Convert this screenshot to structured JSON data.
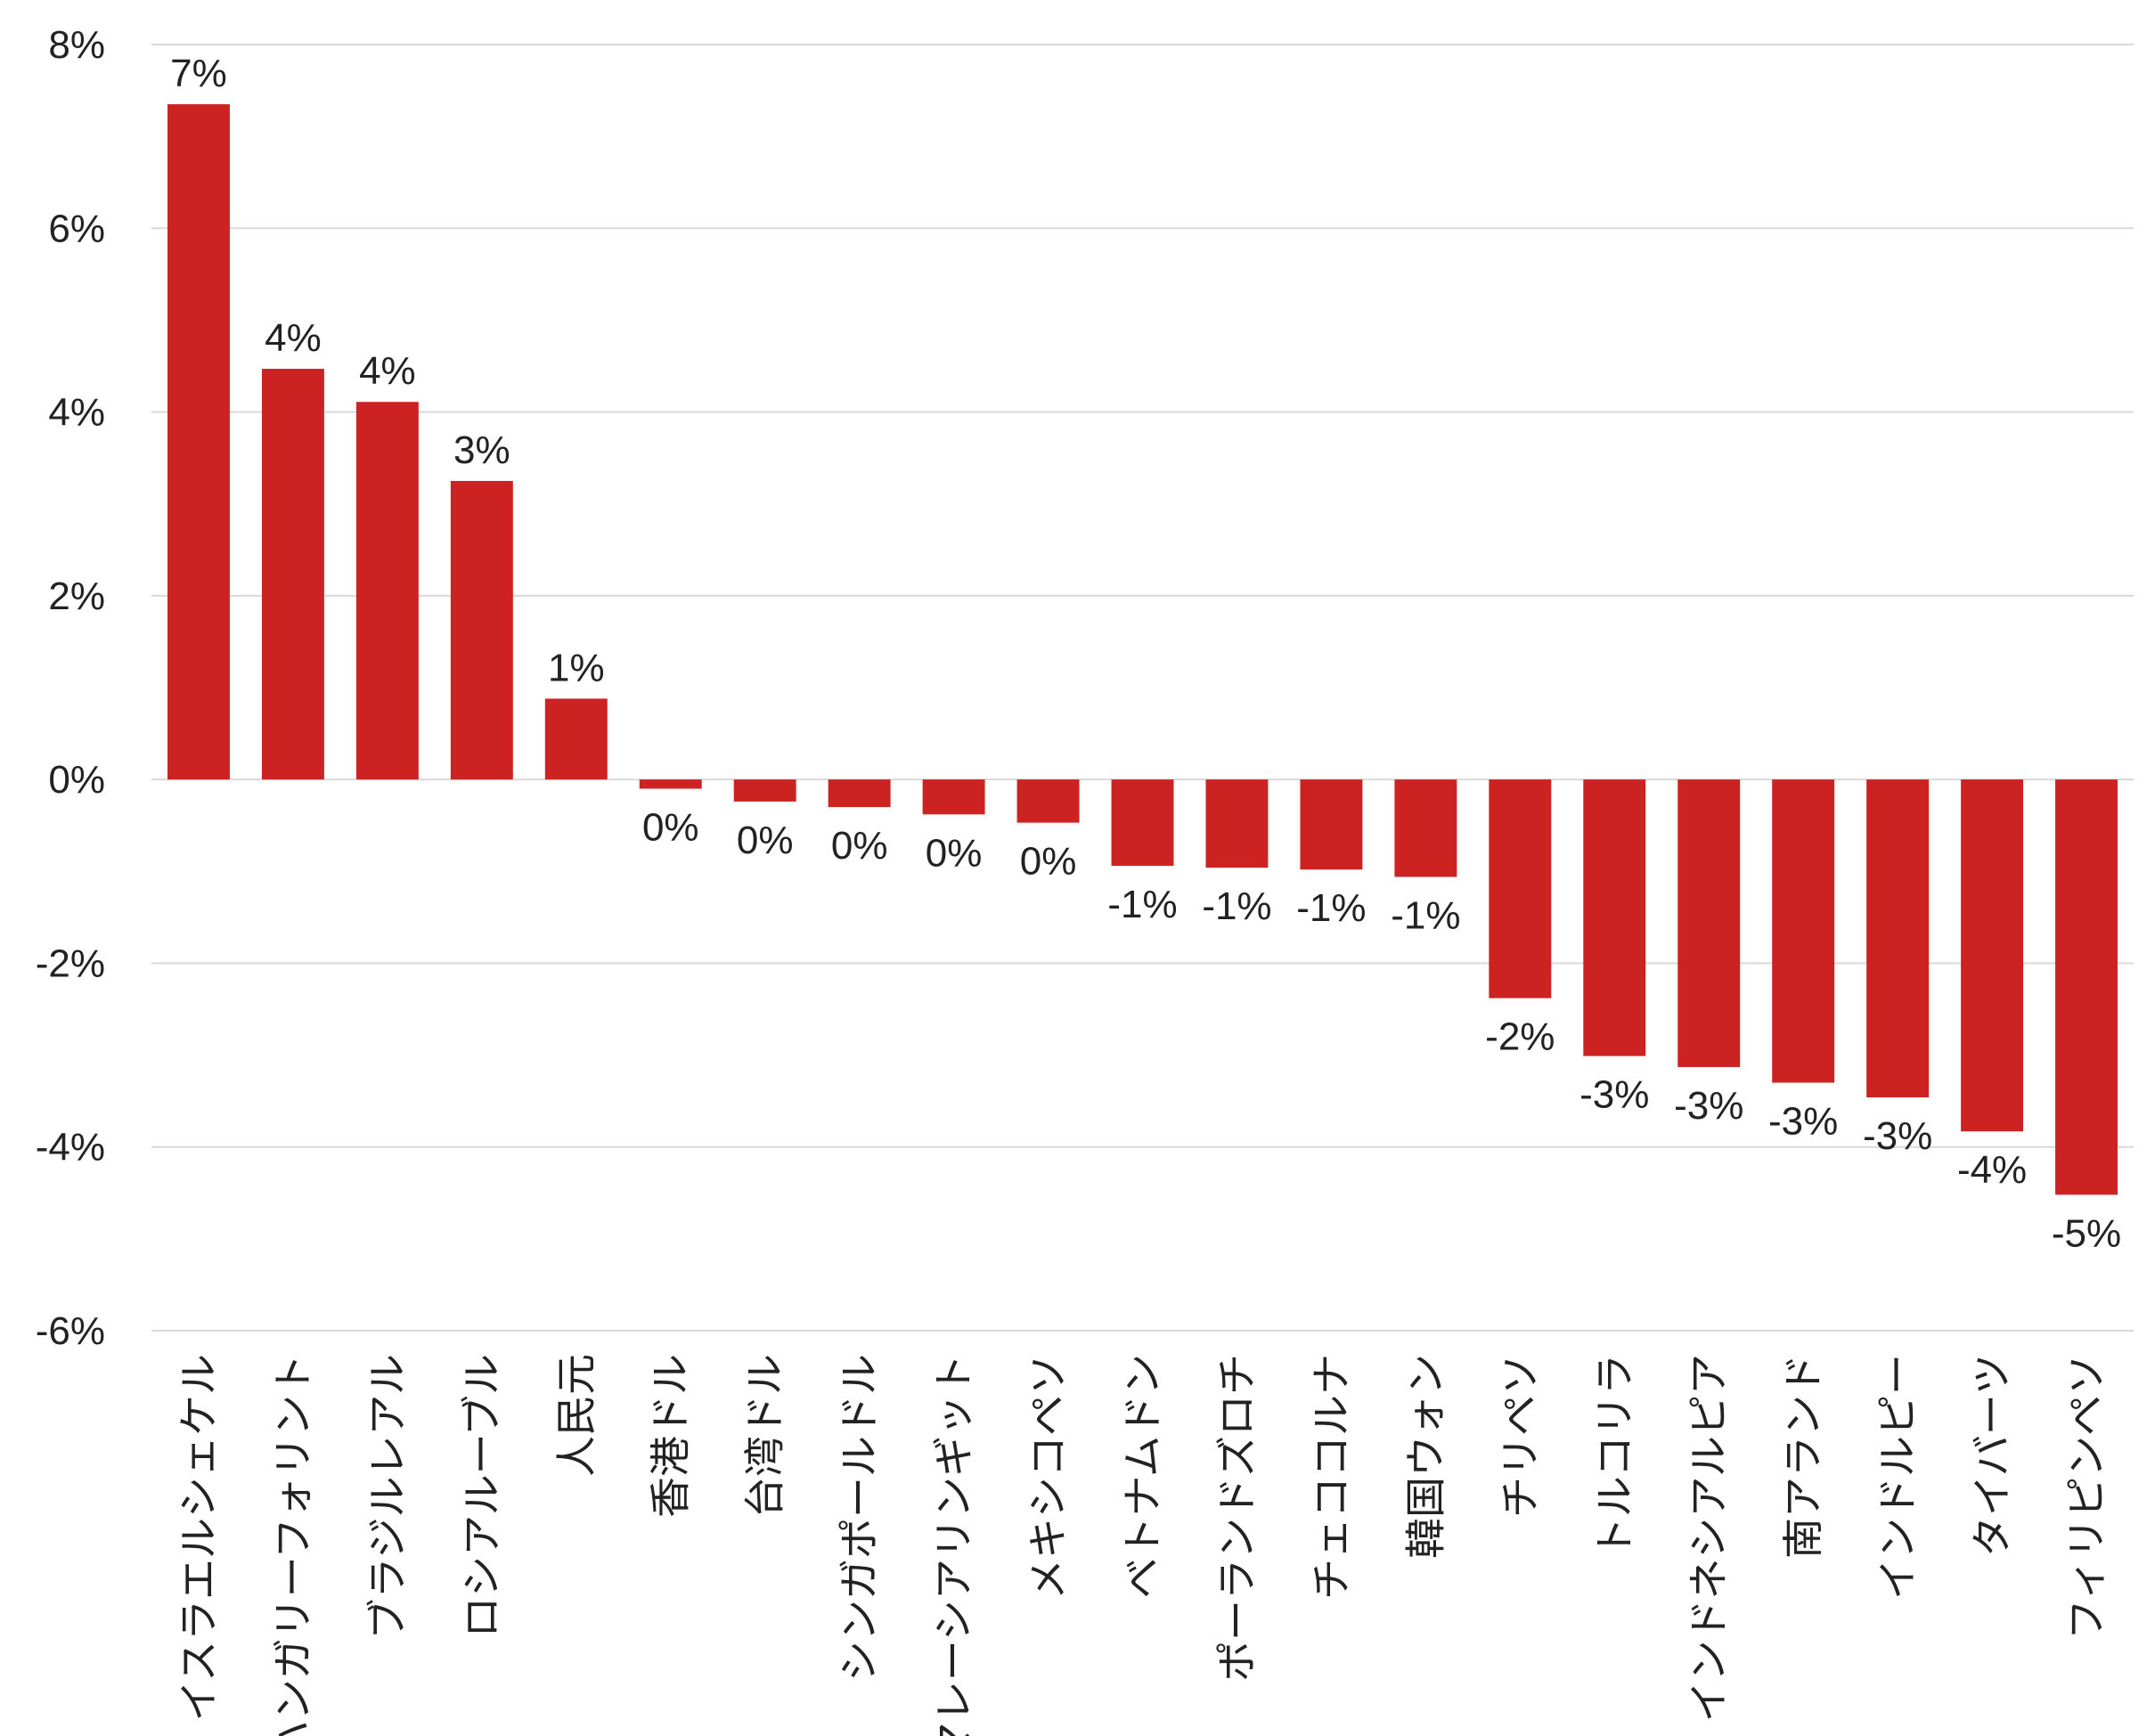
{
  "chart_data": {
    "type": "bar",
    "title": "",
    "xlabel": "",
    "ylabel": "",
    "ylim": [
      -6,
      8
    ],
    "yticks": [
      8,
      6,
      4,
      2,
      0,
      -2,
      -4,
      -6
    ],
    "ytick_labels": [
      "8%",
      "6%",
      "4%",
      "2%",
      "0%",
      "-2%",
      "-4%",
      "-6%"
    ],
    "grid": true,
    "bar_color": "#cc2222",
    "categories": [
      "イスラエルシェケル",
      "ハンガリーフォリント",
      "ブラジルレアル",
      "ロシアルーブル",
      "人民元",
      "香港ドル",
      "台湾ドル",
      "シンガポールドル",
      "マレーシアリンギット",
      "メキシコペソ",
      "ベトナムドン",
      "ポーランドズロチ",
      "チェココルナ",
      "韓国ウォン",
      "チリペソ",
      "トルコリラ",
      "インドネシアルピア",
      "南アランド",
      "インドルピー",
      "タイバーツ",
      "フィリピンペソ"
    ],
    "values": [
      7.35,
      4.47,
      4.11,
      3.25,
      0.88,
      -0.1,
      -0.24,
      -0.3,
      -0.38,
      -0.47,
      -0.94,
      -0.96,
      -0.98,
      -1.06,
      -2.38,
      -3.01,
      -3.13,
      -3.3,
      -3.46,
      -3.83,
      -4.52
    ],
    "data_labels": [
      "7%",
      "4%",
      "4%",
      "3%",
      "1%",
      "0%",
      "0%",
      "0%",
      "0%",
      "0%",
      "-1%",
      "-1%",
      "-1%",
      "-1%",
      "-2%",
      "-3%",
      "-3%",
      "-3%",
      "-3%",
      "-4%",
      "-5%"
    ]
  }
}
